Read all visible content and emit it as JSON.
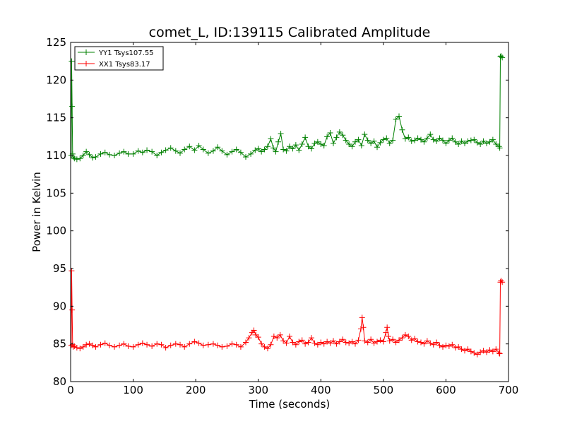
{
  "chart_data": {
    "type": "line",
    "title": "comet_L, ID:139115 Calibrated Amplitude",
    "xlabel": "Time (seconds)",
    "ylabel": "Power in Kelvin",
    "xlim": [
      0,
      700
    ],
    "ylim": [
      80,
      125
    ],
    "xticks": [
      0,
      100,
      200,
      300,
      400,
      500,
      600,
      700
    ],
    "yticks": [
      80,
      85,
      90,
      95,
      100,
      105,
      110,
      115,
      120,
      125
    ],
    "grid": false,
    "legend_position": "top-left",
    "marker": "plus",
    "series": [
      {
        "name": "YY1 Tsys107.55",
        "color": "#008000",
        "x": [
          1,
          1.6,
          2.4,
          3.2,
          4,
          6,
          10,
          15,
          20,
          25,
          30,
          35,
          40,
          48,
          55,
          62,
          70,
          78,
          85,
          92,
          100,
          108,
          115,
          122,
          130,
          138,
          145,
          152,
          160,
          168,
          175,
          182,
          190,
          198,
          205,
          212,
          220,
          228,
          235,
          242,
          250,
          258,
          265,
          272,
          280,
          288,
          295,
          300,
          305,
          310,
          315,
          320,
          324,
          328,
          332,
          336,
          340,
          345,
          350,
          355,
          360,
          365,
          370,
          375,
          380,
          385,
          390,
          395,
          400,
          405,
          410,
          415,
          420,
          425,
          430,
          435,
          440,
          445,
          450,
          455,
          460,
          465,
          470,
          475,
          480,
          485,
          490,
          495,
          500,
          505,
          510,
          515,
          520,
          525,
          530,
          535,
          540,
          545,
          550,
          555,
          560,
          565,
          570,
          575,
          580,
          585,
          590,
          595,
          600,
          605,
          610,
          615,
          620,
          625,
          630,
          635,
          640,
          645,
          650,
          655,
          660,
          665,
          670,
          675,
          680,
          685,
          686,
          687,
          688,
          690
        ],
        "values": [
          110.0,
          122.5,
          116.5,
          110.2,
          109.8,
          109.6,
          109.5,
          109.6,
          110.0,
          110.5,
          110.1,
          109.7,
          109.8,
          110.2,
          110.4,
          110.1,
          110.0,
          110.3,
          110.5,
          110.2,
          110.2,
          110.6,
          110.4,
          110.7,
          110.5,
          110.0,
          110.4,
          110.7,
          111.0,
          110.6,
          110.3,
          110.8,
          111.2,
          110.7,
          111.3,
          110.8,
          110.3,
          110.6,
          111.1,
          110.6,
          110.1,
          110.5,
          110.8,
          110.4,
          109.8,
          110.2,
          110.7,
          110.9,
          110.5,
          110.8,
          111.2,
          112.2,
          111.0,
          110.5,
          111.8,
          112.9,
          110.8,
          110.6,
          111.2,
          110.9,
          111.4,
          110.7,
          111.5,
          112.4,
          111.2,
          110.9,
          111.6,
          111.8,
          111.5,
          111.3,
          112.5,
          113.0,
          111.6,
          112.4,
          113.1,
          112.7,
          112.0,
          111.5,
          111.2,
          111.8,
          112.1,
          111.3,
          112.8,
          112.0,
          111.6,
          111.9,
          111.1,
          111.7,
          112.1,
          112.3,
          111.6,
          112.0,
          114.8,
          115.2,
          113.4,
          112.2,
          112.4,
          111.9,
          112.0,
          112.3,
          112.1,
          111.8,
          112.3,
          112.8,
          112.1,
          111.9,
          112.3,
          112.0,
          111.6,
          112.0,
          112.3,
          111.8,
          111.5,
          111.9,
          111.6,
          111.9,
          112.0,
          112.1,
          111.7,
          111.5,
          111.9,
          111.6,
          111.8,
          112.1,
          111.5,
          111.2,
          111.0,
          123.1,
          123.2,
          123.0
        ]
      },
      {
        "name": "XX1 Tsys83.17",
        "color": "#ff0000",
        "x": [
          1,
          1.6,
          2.4,
          3.2,
          4,
          6,
          10,
          15,
          20,
          25,
          30,
          35,
          40,
          48,
          55,
          62,
          70,
          78,
          85,
          92,
          100,
          108,
          115,
          122,
          130,
          138,
          145,
          152,
          160,
          168,
          175,
          182,
          190,
          198,
          205,
          212,
          220,
          228,
          235,
          242,
          250,
          258,
          265,
          272,
          280,
          285,
          290,
          293,
          296,
          300,
          305,
          310,
          315,
          320,
          325,
          330,
          335,
          340,
          345,
          350,
          355,
          360,
          365,
          370,
          375,
          380,
          385,
          390,
          395,
          400,
          405,
          410,
          415,
          420,
          425,
          430,
          435,
          440,
          445,
          450,
          455,
          460,
          464,
          466,
          468,
          470,
          475,
          480,
          485,
          490,
          495,
          500,
          504,
          506,
          508,
          510,
          515,
          520,
          525,
          530,
          535,
          540,
          545,
          550,
          555,
          560,
          565,
          570,
          575,
          580,
          585,
          590,
          595,
          600,
          605,
          610,
          615,
          620,
          625,
          630,
          635,
          640,
          645,
          650,
          655,
          660,
          665,
          670,
          675,
          680,
          685,
          686,
          687,
          688,
          690
        ],
        "values": [
          84.8,
          94.7,
          89.5,
          84.9,
          84.6,
          84.7,
          84.5,
          84.4,
          84.6,
          84.9,
          85.0,
          84.8,
          84.6,
          84.9,
          85.1,
          84.8,
          84.6,
          84.8,
          85.0,
          84.7,
          84.6,
          84.9,
          85.1,
          84.9,
          84.7,
          85.0,
          84.9,
          84.5,
          84.8,
          85.0,
          84.9,
          84.6,
          85.0,
          85.3,
          85.1,
          84.8,
          84.9,
          85.0,
          84.8,
          84.6,
          84.7,
          85.0,
          84.9,
          84.6,
          85.2,
          85.8,
          86.5,
          86.8,
          86.2,
          85.9,
          85.0,
          84.6,
          84.4,
          84.9,
          86.0,
          85.8,
          86.2,
          85.4,
          85.1,
          86.0,
          85.2,
          84.9,
          85.3,
          85.5,
          85.0,
          85.2,
          85.8,
          85.1,
          84.9,
          85.2,
          85.0,
          85.3,
          85.1,
          85.4,
          85.0,
          85.3,
          85.6,
          85.2,
          85.1,
          85.3,
          85.0,
          85.5,
          87.0,
          88.5,
          87.2,
          85.4,
          85.2,
          85.6,
          85.1,
          85.3,
          85.5,
          85.3,
          86.5,
          87.2,
          86.0,
          85.4,
          85.6,
          85.2,
          85.5,
          85.8,
          86.2,
          86.0,
          85.5,
          85.7,
          85.3,
          85.2,
          85.0,
          85.4,
          85.1,
          84.9,
          85.2,
          84.8,
          84.6,
          84.8,
          84.7,
          84.9,
          84.5,
          84.6,
          84.3,
          84.1,
          84.3,
          84.0,
          83.8,
          83.6,
          83.9,
          84.1,
          83.9,
          84.2,
          84.0,
          84.3,
          83.8,
          83.7,
          93.2,
          93.4,
          93.2
        ]
      }
    ]
  }
}
